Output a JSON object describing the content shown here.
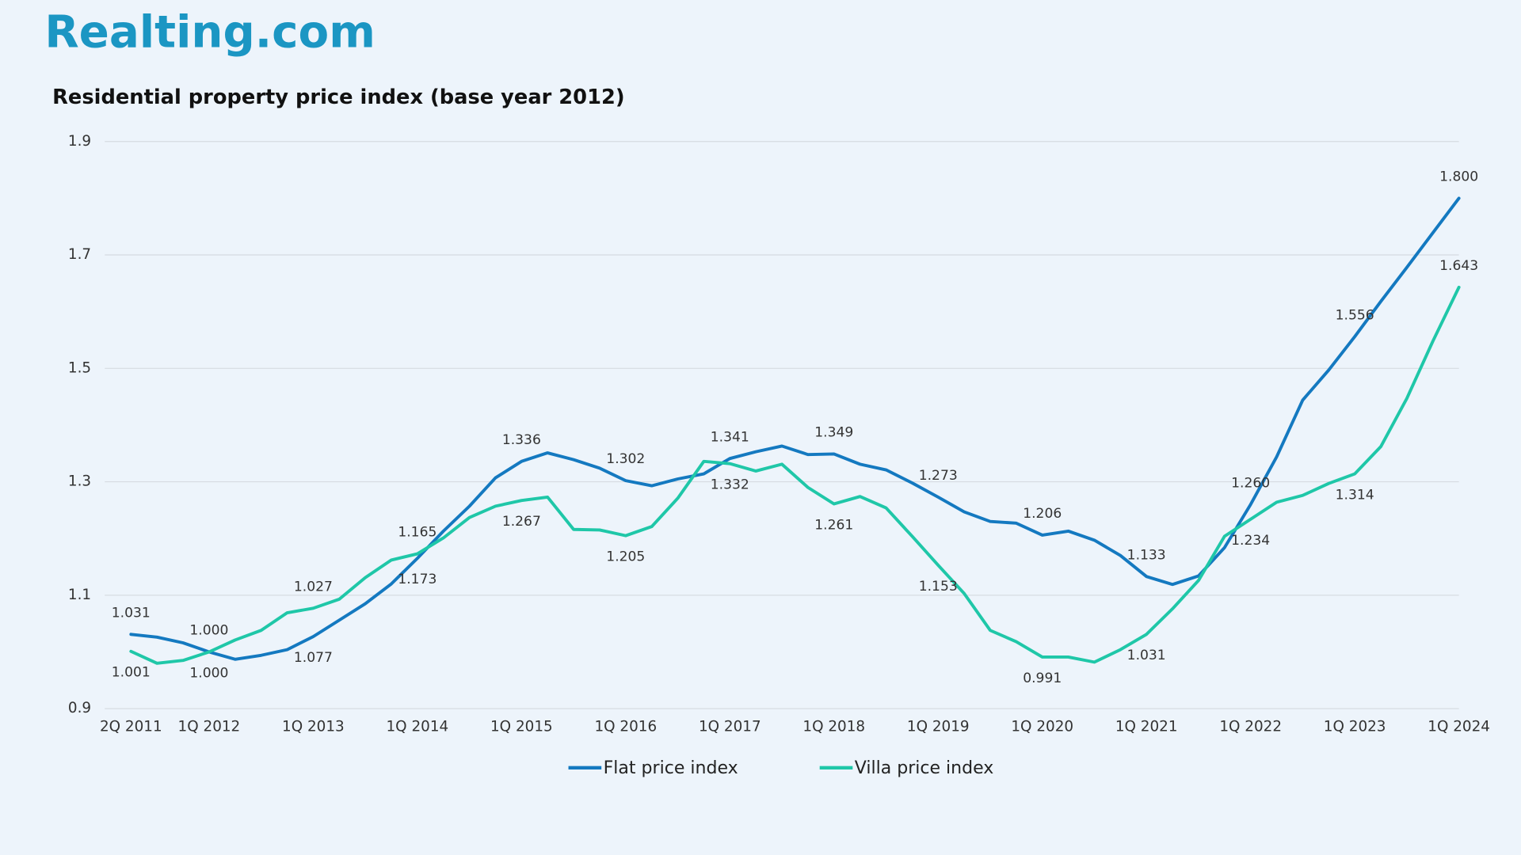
{
  "logo": "Realting.com",
  "chart_data": {
    "type": "line",
    "title": "Residential property price index (base year 2012)",
    "categories": [
      "2Q 2011",
      null,
      null,
      "1Q 2012",
      null,
      null,
      null,
      "1Q 2013",
      null,
      null,
      null,
      "1Q 2014",
      null,
      null,
      null,
      "1Q 2015",
      null,
      null,
      null,
      "1Q 2016",
      null,
      null,
      null,
      "1Q 2017",
      null,
      null,
      null,
      "1Q 2018",
      null,
      null,
      null,
      "1Q 2019",
      null,
      null,
      null,
      "1Q 2020",
      null,
      null,
      null,
      "1Q 2021",
      null,
      null,
      null,
      "1Q 2022",
      null,
      null,
      null,
      "1Q 2023",
      null,
      null,
      null,
      "1Q 2024"
    ],
    "series": [
      {
        "name": "Flat price index",
        "color": "#1479c0",
        "values": [
          1.031,
          1.026,
          1.016,
          1.0,
          0.987,
          0.994,
          1.004,
          1.027,
          1.056,
          1.085,
          1.12,
          1.165,
          1.213,
          1.257,
          1.307,
          1.336,
          1.351,
          1.339,
          1.324,
          1.302,
          1.293,
          1.305,
          1.314,
          1.341,
          1.353,
          1.363,
          1.348,
          1.349,
          1.331,
          1.321,
          1.298,
          1.273,
          1.247,
          1.23,
          1.227,
          1.206,
          1.213,
          1.197,
          1.17,
          1.133,
          1.119,
          1.134,
          1.184,
          1.26,
          1.344,
          1.444,
          1.497,
          1.556,
          1.618,
          1.678,
          1.739,
          1.8
        ],
        "value_labels": [
          "1.031",
          null,
          null,
          "1.000",
          null,
          null,
          null,
          "1.027",
          null,
          null,
          null,
          "1.165",
          null,
          null,
          null,
          "1.336",
          null,
          null,
          null,
          "1.302",
          null,
          null,
          null,
          "1.341",
          null,
          null,
          null,
          "1.349",
          null,
          null,
          null,
          "1.273",
          null,
          null,
          null,
          "1.206",
          null,
          null,
          null,
          "1.133",
          null,
          null,
          null,
          "1.260",
          null,
          null,
          null,
          "1.556",
          null,
          null,
          null,
          "1.800"
        ]
      },
      {
        "name": "Villa price index",
        "color": "#1fc7a8",
        "values": [
          1.001,
          0.98,
          0.985,
          1.0,
          1.021,
          1.038,
          1.069,
          1.077,
          1.093,
          1.131,
          1.162,
          1.173,
          1.201,
          1.237,
          1.257,
          1.267,
          1.273,
          1.216,
          1.215,
          1.205,
          1.221,
          1.271,
          1.336,
          1.332,
          1.319,
          1.331,
          1.29,
          1.261,
          1.274,
          1.254,
          1.204,
          1.153,
          1.103,
          1.038,
          1.018,
          0.991,
          0.991,
          0.982,
          1.004,
          1.031,
          1.076,
          1.126,
          1.204,
          1.234,
          1.264,
          1.276,
          1.297,
          1.314,
          1.362,
          1.447,
          1.548,
          1.643
        ],
        "value_labels": [
          "1.001",
          null,
          null,
          "1.000",
          null,
          null,
          null,
          "1.077",
          null,
          null,
          null,
          "1.173",
          null,
          null,
          null,
          "1.267",
          null,
          null,
          null,
          "1.205",
          null,
          null,
          null,
          "1.332",
          null,
          null,
          null,
          "1.261",
          null,
          null,
          null,
          "1.153",
          null,
          null,
          null,
          "0.991",
          null,
          null,
          null,
          "1.031",
          null,
          null,
          null,
          "1.234",
          null,
          null,
          null,
          "1.314",
          null,
          null,
          null,
          "1.643"
        ]
      }
    ],
    "ylim": [
      0.9,
      1.9
    ],
    "yticks": [
      0.9,
      1.1,
      1.3,
      1.5,
      1.7,
      1.9
    ],
    "grid": true,
    "legend": "bottom"
  }
}
